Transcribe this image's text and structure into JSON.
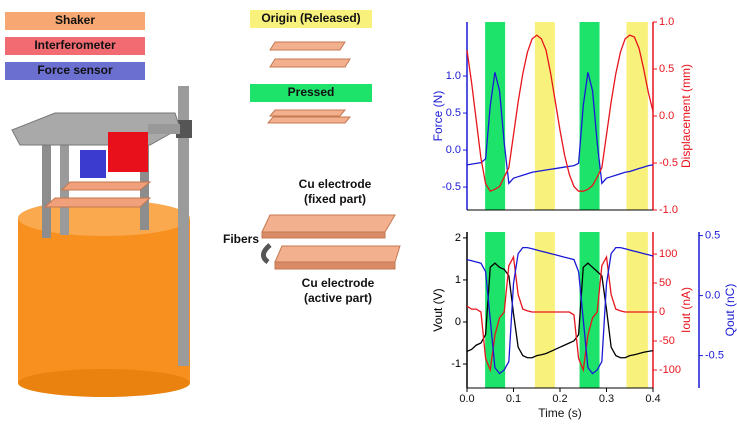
{
  "legend": [
    "Shaker",
    "Interferometer",
    "Force sensor"
  ],
  "states": [
    "Origin (Released)",
    "Pressed"
  ],
  "electrodes": {
    "fixed": [
      "Cu electrode",
      "(fixed part)"
    ],
    "active": [
      "Cu electrode",
      "(active part)"
    ]
  },
  "fibers": "Fibers",
  "chart_data": [
    {
      "type": "line",
      "ylabel": "Force (N)",
      "y2label": "Displacement (mm)",
      "x": [
        0,
        0.01,
        0.02,
        0.03,
        0.04,
        0.05,
        0.06,
        0.07,
        0.08,
        0.09,
        0.1,
        0.11,
        0.12,
        0.13,
        0.14,
        0.15,
        0.16,
        0.17,
        0.18,
        0.19,
        0.2,
        0.21,
        0.22,
        0.23,
        0.24,
        0.25,
        0.26,
        0.27,
        0.28,
        0.29,
        0.3,
        0.31,
        0.32,
        0.33,
        0.34,
        0.35,
        0.36,
        0.37,
        0.38,
        0.39,
        0.4
      ],
      "xlim": [
        0,
        0.4
      ],
      "ylim": [
        -0.81,
        1.73
      ],
      "yticks": [
        -0.5,
        {
          "value": 0,
          "label": "0.0"
        },
        0.5,
        {
          "value": 1,
          "label": "1.0"
        }
      ],
      "y2lim": [
        -1,
        1
      ],
      "y2ticks": [
        {
          "value": -1,
          "label": "-1.0"
        },
        -0.5,
        {
          "value": 0,
          "label": "0.0"
        },
        0.5,
        {
          "value": 1,
          "label": "1.0"
        }
      ],
      "spans": [
        {
          "start": 0.039,
          "end": 0.082,
          "color": "#1ee36a"
        },
        {
          "start": 0.146,
          "end": 0.189,
          "color": "#f8f27c"
        },
        {
          "start": 0.242,
          "end": 0.285,
          "color": "#1ee36a"
        },
        {
          "start": 0.343,
          "end": 0.389,
          "color": "#f8f27c"
        }
      ],
      "series": [
        {
          "name": "Force",
          "color": "#1a1ad6",
          "axis": "y",
          "values": [
            -0.2,
            -0.19,
            -0.18,
            -0.17,
            -0.12,
            0.6,
            1.05,
            0.8,
            0.1,
            -0.45,
            -0.38,
            -0.36,
            -0.34,
            -0.32,
            -0.3,
            -0.29,
            -0.28,
            -0.27,
            -0.26,
            -0.25,
            -0.24,
            -0.23,
            -0.22,
            -0.21,
            -0.18,
            0.6,
            1.05,
            0.8,
            0.1,
            -0.45,
            -0.38,
            -0.36,
            -0.34,
            -0.32,
            -0.3,
            -0.29,
            -0.27,
            -0.25,
            -0.23,
            -0.21,
            -0.2
          ]
        },
        {
          "name": "Displacement",
          "color": "#e8141c",
          "axis": "y2",
          "values": [
            0.7,
            0.35,
            -0.05,
            -0.45,
            -0.72,
            -0.8,
            -0.78,
            -0.75,
            -0.65,
            -0.55,
            -0.2,
            0.15,
            0.45,
            0.68,
            0.82,
            0.86,
            0.82,
            0.7,
            0.45,
            0.15,
            -0.15,
            -0.42,
            -0.62,
            -0.75,
            -0.8,
            -0.8,
            -0.78,
            -0.74,
            -0.65,
            -0.55,
            -0.2,
            0.15,
            0.45,
            0.68,
            0.82,
            0.86,
            0.84,
            0.72,
            0.5,
            0.25,
            0.05
          ]
        }
      ]
    },
    {
      "type": "line",
      "xlabel": "Time (s)",
      "ylabel": "Vout (V)",
      "y2label": "Iout (nA)",
      "y3label": "Qout (nC)",
      "x": [
        0,
        0.01,
        0.02,
        0.03,
        0.04,
        0.05,
        0.06,
        0.07,
        0.08,
        0.09,
        0.1,
        0.11,
        0.12,
        0.13,
        0.14,
        0.15,
        0.16,
        0.17,
        0.18,
        0.19,
        0.2,
        0.21,
        0.22,
        0.23,
        0.24,
        0.25,
        0.26,
        0.27,
        0.28,
        0.29,
        0.3,
        0.31,
        0.32,
        0.33,
        0.34,
        0.35,
        0.36,
        0.37,
        0.38,
        0.39,
        0.4
      ],
      "xlim": [
        0,
        0.4
      ],
      "xticks": [
        {
          "value": 0,
          "label": "0.0"
        },
        0.1,
        0.2,
        0.3,
        0.4
      ],
      "ylim": [
        -1.57,
        2.14
      ],
      "yticks": [
        -1,
        0,
        1,
        2
      ],
      "y2lim": [
        -131,
        138
      ],
      "y2ticks": [
        -100,
        -50,
        0,
        50,
        100
      ],
      "y3lim": [
        -0.77,
        0.53
      ],
      "y3ticks": [
        -0.5,
        {
          "value": 0,
          "label": "0.0"
        },
        0.5
      ],
      "spans": [
        {
          "start": 0.039,
          "end": 0.082,
          "color": "#1ee36a"
        },
        {
          "start": 0.146,
          "end": 0.189,
          "color": "#f8f27c"
        },
        {
          "start": 0.242,
          "end": 0.285,
          "color": "#1ee36a"
        },
        {
          "start": 0.343,
          "end": 0.389,
          "color": "#f8f27c"
        }
      ],
      "series": [
        {
          "name": "Vout",
          "color": "#000000",
          "axis": "y",
          "values": [
            -0.7,
            -0.65,
            -0.55,
            -0.5,
            -0.3,
            1.3,
            1.4,
            1.3,
            1.25,
            1.1,
            0.2,
            -0.6,
            -0.8,
            -0.85,
            -0.85,
            -0.8,
            -0.78,
            -0.75,
            -0.7,
            -0.65,
            -0.6,
            -0.55,
            -0.5,
            -0.45,
            -0.3,
            1.3,
            1.4,
            1.3,
            1.2,
            1.1,
            0.3,
            -0.6,
            -0.8,
            -0.85,
            -0.85,
            -0.8,
            -0.78,
            -0.75,
            -0.72,
            -0.7,
            -0.68
          ]
        },
        {
          "name": "Iout",
          "color": "#e8141c",
          "axis": "y2",
          "values": [
            10,
            5,
            5,
            0,
            -80,
            -100,
            -40,
            -10,
            0,
            80,
            95,
            30,
            5,
            2,
            0,
            0,
            0,
            0,
            0,
            0,
            0,
            0,
            0,
            -5,
            -80,
            -100,
            -40,
            -10,
            0,
            80,
            95,
            30,
            5,
            2,
            0,
            0,
            0,
            0,
            0,
            0,
            0
          ]
        },
        {
          "name": "Qout",
          "color": "#1a1ad6",
          "axis": "y3",
          "values": [
            0.3,
            0.29,
            0.28,
            0.27,
            0.2,
            -0.2,
            -0.6,
            -0.65,
            -0.62,
            -0.55,
            0.1,
            0.35,
            0.4,
            0.4,
            0.39,
            0.38,
            0.37,
            0.36,
            0.35,
            0.34,
            0.33,
            0.32,
            0.31,
            0.3,
            0.2,
            -0.2,
            -0.6,
            -0.65,
            -0.62,
            -0.55,
            0.1,
            0.35,
            0.4,
            0.4,
            0.39,
            0.38,
            0.37,
            0.36,
            0.35,
            0.34,
            0.33
          ]
        }
      ]
    }
  ]
}
